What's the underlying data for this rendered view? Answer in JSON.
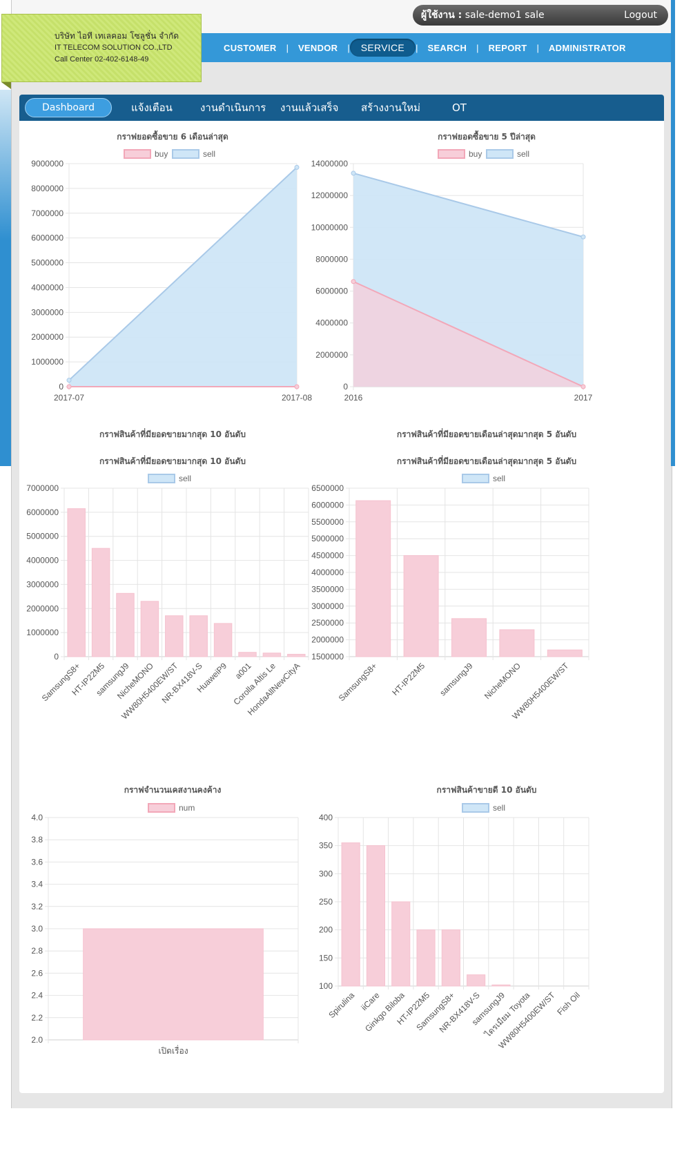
{
  "user": {
    "label": "ผู้ใช้งาน :",
    "name": "sale-demo1 sale",
    "logout": "Logout"
  },
  "company": {
    "name_th": "บริษัท ไอที เทเลคอม โซลูชั่น จำกัด",
    "name_en": "IT TELECOM SOLUTION CO.,LTD",
    "call_center": "Call Center 02-402-6148-49"
  },
  "nav": {
    "items": [
      "CUSTOMER",
      "VENDOR",
      "SERVICE",
      "SEARCH",
      "REPORT",
      "ADMINISTRATOR"
    ],
    "active": "SERVICE"
  },
  "tabs": {
    "items": [
      "Dashboard",
      "แจ้งเตือน",
      "งานดำเนินการ",
      "งานแล้วเสร็จ",
      "สร้างงานใหม่",
      "OT"
    ],
    "active": "Dashboard"
  },
  "colors": {
    "buy_fill": "#f7ced9",
    "buy_stroke": "#f2a7b8",
    "sell_fill": "#cfe6f7",
    "sell_stroke": "#a9c9e8",
    "mix_fill": "#dcc8df"
  },
  "chart_data": [
    {
      "id": "c1",
      "type": "area",
      "title": "กราฟยอดซื้อขาย 6 เดือนล่าสุด",
      "categories": [
        "2017-07",
        "2017-08"
      ],
      "series": [
        {
          "name": "buy",
          "values": [
            0,
            0
          ]
        },
        {
          "name": "sell",
          "values": [
            260000,
            8850000
          ]
        }
      ],
      "ylim": [
        0,
        9000000
      ],
      "yticks": [
        0,
        1000000,
        2000000,
        3000000,
        4000000,
        5000000,
        6000000,
        7000000,
        8000000,
        9000000
      ],
      "legend": "top"
    },
    {
      "id": "c2",
      "type": "area",
      "title": "กราฟยอดซื้อขาย 5 ปีล่าสุด",
      "categories": [
        "2016",
        "2017"
      ],
      "series": [
        {
          "name": "buy",
          "values": [
            6600000,
            0
          ]
        },
        {
          "name": "sell",
          "values": [
            13400000,
            9400000
          ]
        }
      ],
      "ylim": [
        0,
        14000000
      ],
      "yticks": [
        0,
        2000000,
        4000000,
        6000000,
        8000000,
        10000000,
        12000000,
        14000000
      ],
      "legend": "top"
    },
    {
      "id": "c3",
      "type": "bar",
      "heading": "กราฟสินค้าที่มียอดขายมากสุด 10 อันดับ",
      "title": "กราฟสินค้าที่มียอดขายมากสุด 10 อันดับ",
      "categories": [
        "SamsungS8+",
        "HT-IP22M5",
        "samsungJ9",
        "NicheMONO",
        "WW80H5400EW/ST",
        "NR-BX418V-S",
        "HuaweiP9",
        "a001",
        "Corolla Altis Le",
        "HondaAllNewCityA"
      ],
      "series": [
        {
          "name": "sell",
          "values": [
            6150000,
            4500000,
            2630000,
            2300000,
            1700000,
            1700000,
            1380000,
            180000,
            150000,
            100000
          ]
        }
      ],
      "ylim": [
        0,
        7000000
      ],
      "yticks": [
        0,
        1000000,
        2000000,
        3000000,
        4000000,
        5000000,
        6000000,
        7000000
      ],
      "legend": "top"
    },
    {
      "id": "c4",
      "type": "bar",
      "heading": "กราฟสินค้าที่มียอดขายเดือนล่าสุดมากสุด 5 อันดับ",
      "title": "กราฟสินค้าที่มียอดขายเดือนล่าสุดมากสุด 5 อันดับ",
      "categories": [
        "SamsungS8+",
        "HT-IP22M5",
        "samsungJ9",
        "NicheMONO",
        "WW80H5400EW/ST"
      ],
      "series": [
        {
          "name": "sell",
          "values": [
            6130000,
            4500000,
            2630000,
            2300000,
            1700000
          ]
        }
      ],
      "ylim": [
        1500000,
        6500000
      ],
      "yticks": [
        1500000,
        2000000,
        2500000,
        3000000,
        3500000,
        4000000,
        4500000,
        5000000,
        5500000,
        6000000,
        6500000
      ],
      "legend": "top"
    },
    {
      "id": "c5",
      "type": "bar",
      "title": "กราฟจำนวนเคสงานคงค้าง",
      "categories": [
        "เปิดเรื่อง"
      ],
      "series": [
        {
          "name": "num",
          "values": [
            3.0
          ]
        }
      ],
      "ylim": [
        2.0,
        4.0
      ],
      "yticks": [
        "2.0",
        "2.2",
        "2.4",
        "2.6",
        "2.8",
        "3.0",
        "3.2",
        "3.4",
        "3.6",
        "3.8",
        "4.0"
      ],
      "legend": "top"
    },
    {
      "id": "c6",
      "type": "bar",
      "title": "กราฟสินค้าขายดี 10 อันดับ",
      "categories": [
        "Spirulina",
        "iiCare",
        "Ginkgo Biloba",
        "HT-IP22M5",
        "SamsungS8+",
        "NR-BX418V-S",
        "samsungJ9",
        "ไดรเมียม Toyota",
        "WW80H5400EW/ST",
        "Fish Oil"
      ],
      "series": [
        {
          "name": "sell",
          "values": [
            355,
            350,
            250,
            200,
            200,
            120,
            102,
            100,
            100,
            100
          ]
        }
      ],
      "ylim": [
        100,
        400
      ],
      "yticks": [
        100,
        150,
        200,
        250,
        300,
        350,
        400
      ],
      "legend": "top"
    }
  ]
}
